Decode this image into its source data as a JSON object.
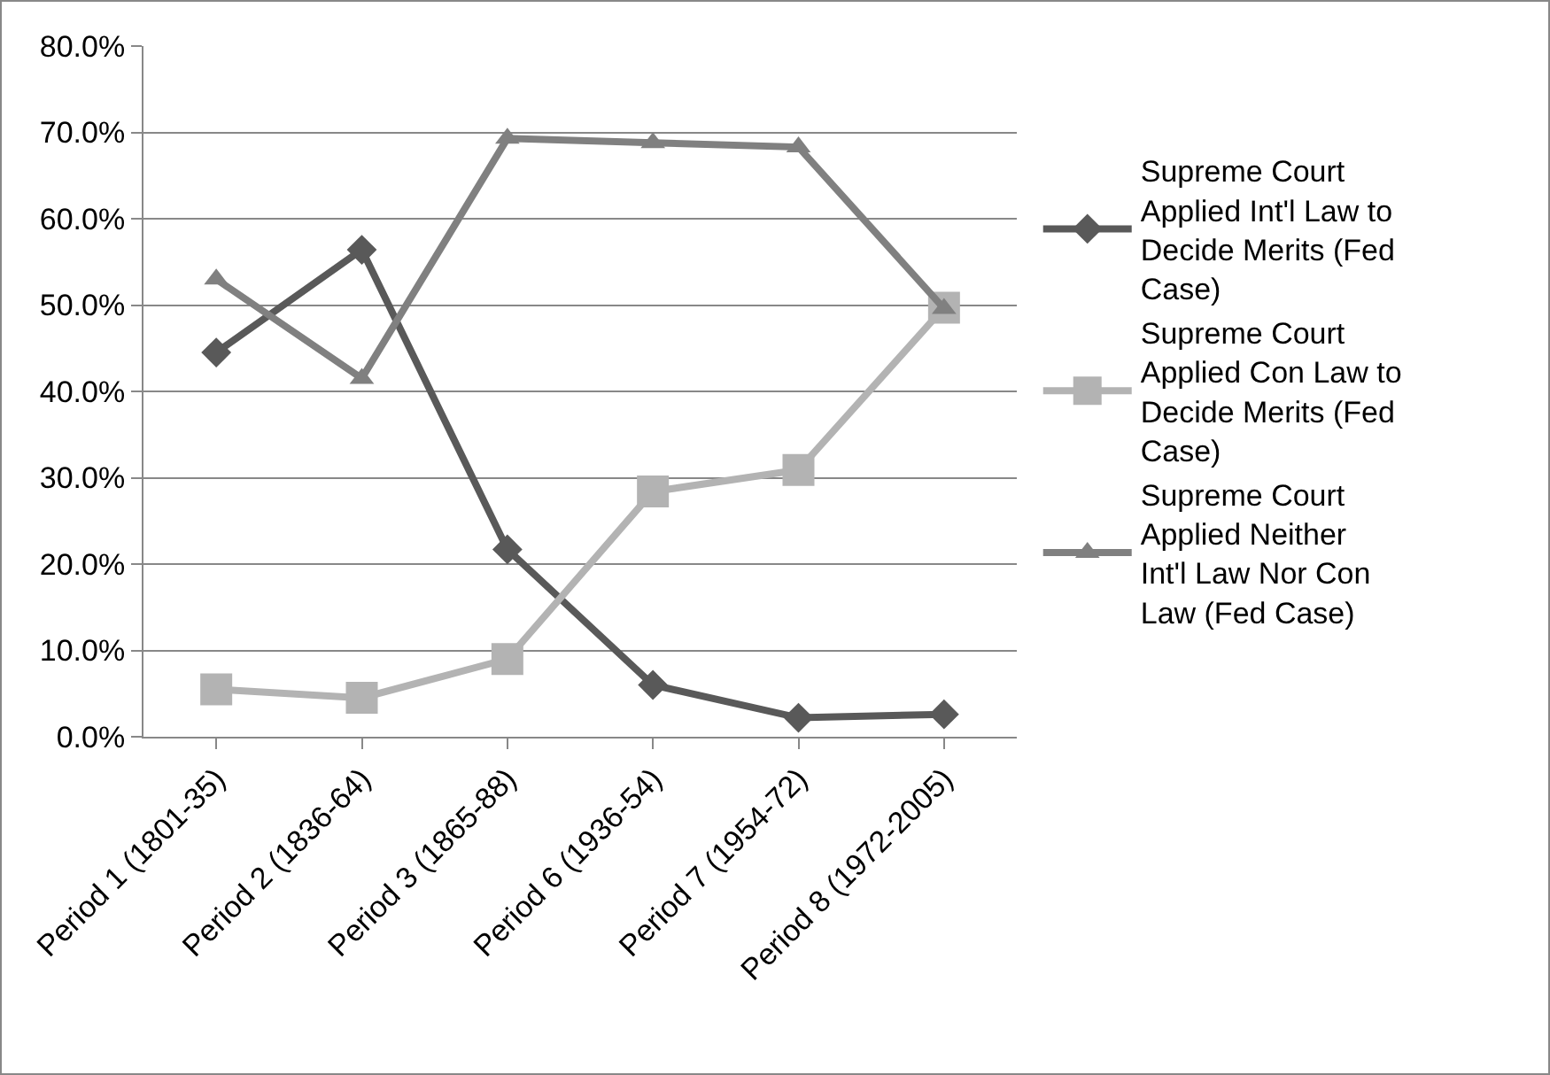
{
  "chart_data": {
    "type": "line",
    "categories": [
      "Period 1 (1801-35)",
      "Period 2 (1836-64)",
      "Period 3 (1865-88)",
      "Period 6 (1936-54)",
      "Period 7 (1954-72)",
      "Period 8 (1972-2005)"
    ],
    "series": [
      {
        "name": "Supreme Court Applied Int'l Law to Decide Merits (Fed Case)",
        "color": "#595959",
        "marker": "diamond",
        "values": [
          44.5,
          56.4,
          21.7,
          6.0,
          2.2,
          2.6
        ]
      },
      {
        "name": "Supreme Court Applied Con Law to Decide Merits (Fed Case)",
        "color": "#b3b3b3",
        "marker": "square",
        "values": [
          5.5,
          4.5,
          9.0,
          28.4,
          30.9,
          49.7
        ]
      },
      {
        "name": "Supreme Court Applied Neither Int'l Law Nor Con Law (Fed Case)",
        "color": "#808080",
        "marker": "triangle",
        "values": [
          53.0,
          41.5,
          69.3,
          68.8,
          68.3,
          49.6
        ]
      }
    ],
    "ylim": [
      0,
      80
    ],
    "yticks": [
      {
        "value": 0,
        "label": "0.0%"
      },
      {
        "value": 10,
        "label": "10.0%"
      },
      {
        "value": 20,
        "label": "20.0%"
      },
      {
        "value": 30,
        "label": "30.0%"
      },
      {
        "value": 40,
        "label": "40.0%"
      },
      {
        "value": 50,
        "label": "50.0%"
      },
      {
        "value": 60,
        "label": "60.0%"
      },
      {
        "value": 70,
        "label": "70.0%"
      },
      {
        "value": 80,
        "label": "80.0%"
      }
    ],
    "grid": "y",
    "legend": "right",
    "line_style": "solid"
  }
}
